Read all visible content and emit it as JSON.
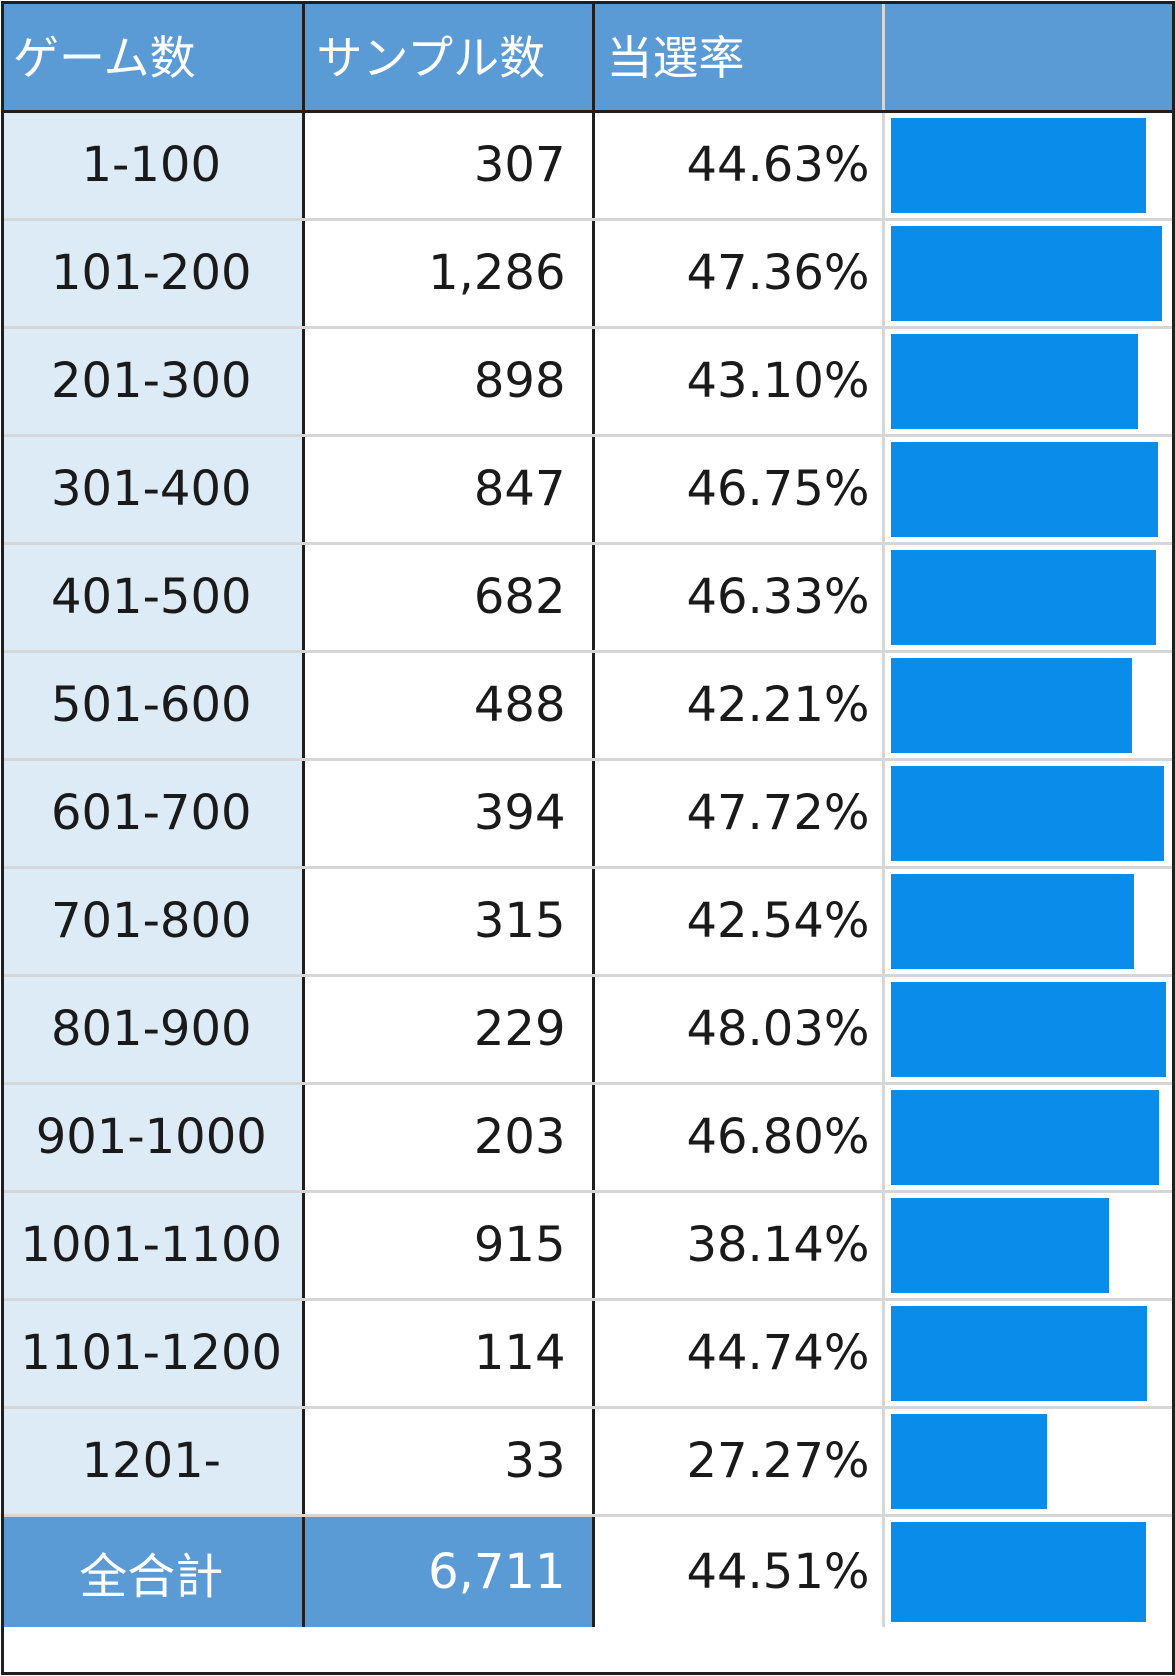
{
  "header": {
    "col_games": "ゲーム数",
    "col_samples": "サンプル数",
    "col_rate": "当選率",
    "col_bar": ""
  },
  "colors": {
    "header_bg": "#5b9bd5",
    "range_bg": "#ddebf7",
    "bar": "#0a8ceb"
  },
  "chart_data": {
    "type": "table",
    "columns": [
      "ゲーム数",
      "サンプル数",
      "当選率"
    ],
    "bar_max": 50,
    "rows": [
      {
        "range": "1-100",
        "samples": "307",
        "rate_label": "44.63%",
        "rate": 44.63
      },
      {
        "range": "101-200",
        "samples": "1,286",
        "rate_label": "47.36%",
        "rate": 47.36
      },
      {
        "range": "201-300",
        "samples": "898",
        "rate_label": "43.10%",
        "rate": 43.1
      },
      {
        "range": "301-400",
        "samples": "847",
        "rate_label": "46.75%",
        "rate": 46.75
      },
      {
        "range": "401-500",
        "samples": "682",
        "rate_label": "46.33%",
        "rate": 46.33
      },
      {
        "range": "501-600",
        "samples": "488",
        "rate_label": "42.21%",
        "rate": 42.21
      },
      {
        "range": "601-700",
        "samples": "394",
        "rate_label": "47.72%",
        "rate": 47.72
      },
      {
        "range": "701-800",
        "samples": "315",
        "rate_label": "42.54%",
        "rate": 42.54
      },
      {
        "range": "801-900",
        "samples": "229",
        "rate_label": "48.03%",
        "rate": 48.03
      },
      {
        "range": "901-1000",
        "samples": "203",
        "rate_label": "46.80%",
        "rate": 46.8
      },
      {
        "range": "1001-1100",
        "samples": "915",
        "rate_label": "38.14%",
        "rate": 38.14
      },
      {
        "range": "1101-1200",
        "samples": "114",
        "rate_label": "44.74%",
        "rate": 44.74
      },
      {
        "range": "1201-",
        "samples": "33",
        "rate_label": "27.27%",
        "rate": 27.27
      }
    ],
    "total": {
      "range": "全合計",
      "samples": "6,711",
      "rate_label": "44.51%",
      "rate": 44.51
    }
  }
}
